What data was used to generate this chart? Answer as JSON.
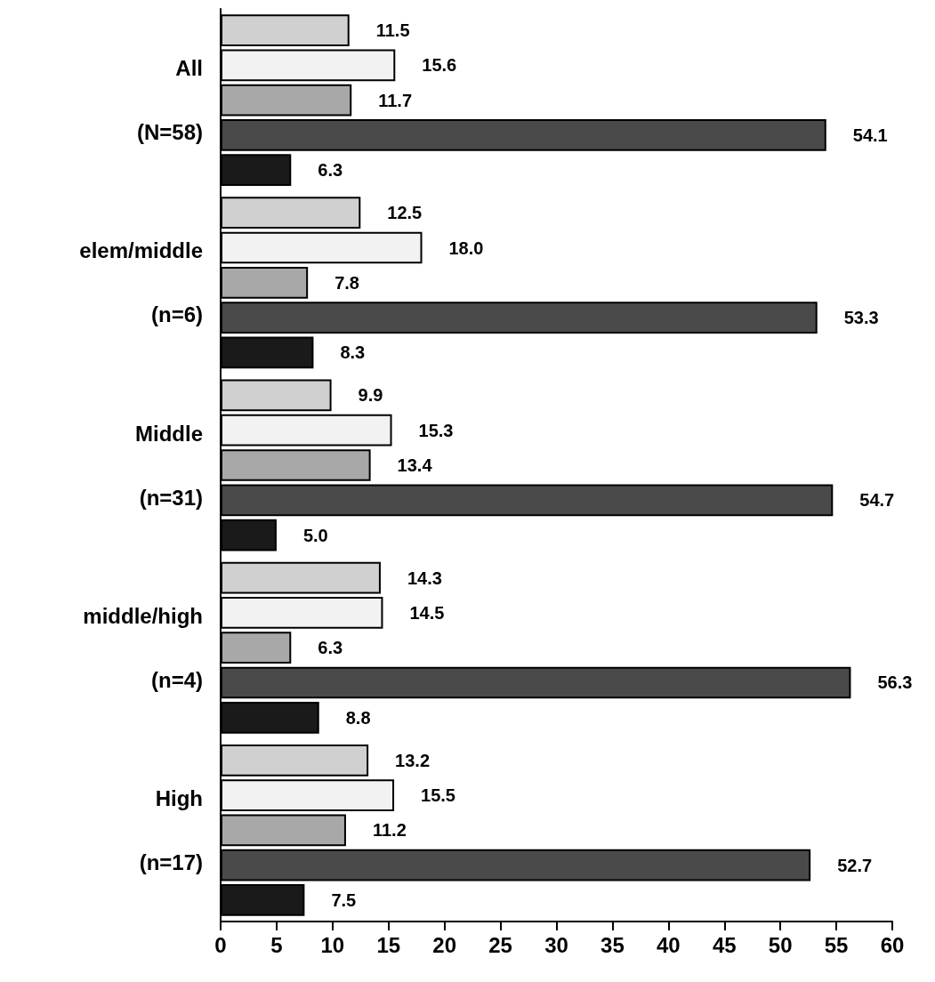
{
  "chart_data": {
    "type": "bar",
    "orientation": "horizontal",
    "categories": [
      "All\n(N=58)",
      "elem/middle\n(n=6)",
      "Middle\n(n=31)",
      "middle/high\n(n=4)",
      "High\n(n=17)"
    ],
    "series": [
      {
        "color": "#d0d0d0",
        "values": [
          11.5,
          12.5,
          9.9,
          14.3,
          13.2
        ],
        "value_labels": [
          "11.5",
          "12.5",
          "9.9",
          "14.3",
          "13.2"
        ]
      },
      {
        "color": "#f2f2f2",
        "values": [
          15.6,
          18.0,
          15.3,
          14.5,
          15.5
        ],
        "value_labels": [
          "15.6",
          "18.0",
          "15.3",
          "14.5",
          "15.5"
        ]
      },
      {
        "color": "#a8a8a8",
        "values": [
          11.7,
          7.8,
          13.4,
          6.3,
          11.2
        ],
        "value_labels": [
          "11.7",
          "7.8",
          "13.4",
          "6.3",
          "11.2"
        ]
      },
      {
        "color": "#4a4a4a",
        "values": [
          54.1,
          53.3,
          54.7,
          56.3,
          52.7
        ],
        "value_labels": [
          "54.1",
          "53.3",
          "54.7",
          "56.3",
          "52.7"
        ]
      },
      {
        "color": "#1a1a1a",
        "values": [
          6.3,
          8.3,
          5.0,
          8.8,
          7.5
        ],
        "value_labels": [
          "6.3",
          "8.3",
          "5.0",
          "8.8",
          "7.5"
        ]
      }
    ],
    "xlim": [
      0,
      60
    ],
    "xticks": [
      0,
      5,
      10,
      15,
      20,
      25,
      30,
      35,
      40,
      45,
      50,
      55,
      60
    ],
    "grid": false
  }
}
